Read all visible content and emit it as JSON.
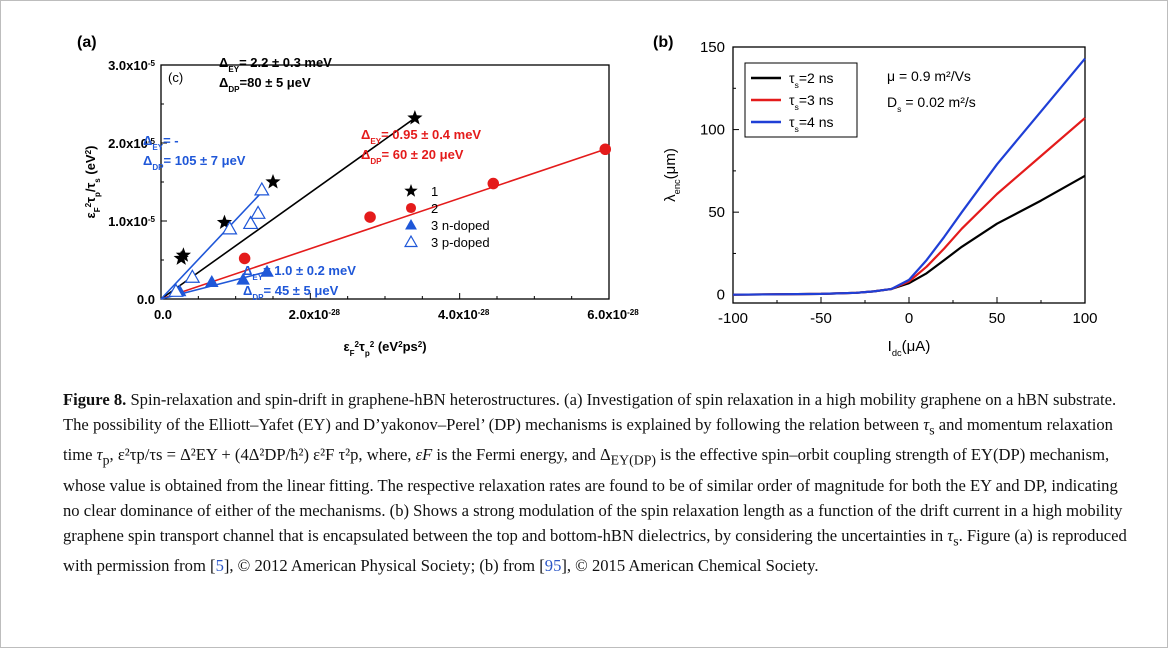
{
  "chart_data": [
    {
      "type": "scatter",
      "panel_label": "(a)",
      "inset_label": "(c)",
      "xlabel_parts": [
        "ε",
        "F",
        "2",
        "τ",
        "p",
        "2",
        " (eV",
        "2",
        "ps",
        "2",
        ")"
      ],
      "ylabel_parts": [
        "ε",
        "F",
        "2",
        "τ",
        "p",
        "/τ",
        "s",
        " (eV",
        "2",
        ")"
      ],
      "xlim": [
        0,
        6e-28
      ],
      "ylim": [
        0,
        3e-05
      ],
      "x_ticks": [
        {
          "mant": "0.0",
          "exp": ""
        },
        {
          "mant": "2.0x10",
          "exp": "-28"
        },
        {
          "mant": "4.0x10",
          "exp": "-28"
        },
        {
          "mant": "6.0x10",
          "exp": "-28"
        }
      ],
      "x_tick_values": [
        0,
        2e-28,
        4e-28,
        6e-28
      ],
      "y_ticks": [
        {
          "mant": "0.0",
          "exp": ""
        },
        {
          "mant": "1.0x10",
          "exp": "-5"
        },
        {
          "mant": "2.0x10",
          "exp": "-5"
        },
        {
          "mant": "3.0x10",
          "exp": "-5"
        }
      ],
      "y_tick_values": [
        0,
        1e-05,
        2e-05,
        3e-05
      ],
      "series": [
        {
          "name": "1",
          "marker": "star",
          "color": "#000000",
          "x": [
            2.7e-29,
            3e-29,
            8.5e-29,
            1.5e-28,
            3.4e-28
          ],
          "y": [
            5.2e-06,
            5.6e-06,
            9.8e-06,
            1.5e-05,
            2.32e-05
          ],
          "fit": [
            [
              0,
              0
            ],
            [
              3.4e-28,
              2.32e-05
            ]
          ]
        },
        {
          "name": "2",
          "marker": "circle",
          "color": "#e41b1b",
          "x": [
            1.12e-28,
            2.8e-28,
            4.45e-28,
            5.95e-28
          ],
          "y": [
            5.2e-06,
            1.05e-05,
            1.48e-05,
            1.92e-05
          ],
          "fit": [
            [
              0,
              0
            ],
            [
              5.95e-28,
              1.92e-05
            ]
          ]
        },
        {
          "name": "3 n-doped",
          "marker": "triangle",
          "color": "#1f57d8",
          "x": [
            2.5e-29,
            6.8e-29,
            1.1e-28,
            1.42e-28
          ],
          "y": [
            1e-06,
            2.2e-06,
            2.5e-06,
            3.5e-06
          ],
          "fit": [
            [
              0,
              0
            ],
            [
              1.42e-28,
              3.5e-06
            ]
          ]
        },
        {
          "name": "3 p-doped",
          "marker": "triangle-open",
          "color": "#1f57d8",
          "x": [
            2e-29,
            4.2e-29,
            9.2e-29,
            1.2e-28,
            1.3e-28,
            1.35e-28
          ],
          "y": [
            1e-06,
            2.8e-06,
            9e-06,
            9.7e-06,
            1.1e-05,
            1.4e-05
          ],
          "fit": [
            [
              0,
              0
            ],
            [
              1.38e-28,
              1.4e-05
            ]
          ]
        }
      ],
      "annotations": [
        {
          "color": "#000000",
          "lines": [
            [
              [
                "Δ",
                ""
              ],
              [
                "EY",
                "sub"
              ],
              [
                "= 2.2 ± 0.3 meV",
                ""
              ]
            ],
            [
              [
                "Δ",
                ""
              ],
              [
                "DP",
                "sub"
              ],
              [
                "=80 ± 5 μeV",
                ""
              ]
            ]
          ]
        },
        {
          "color": "#1f57d8",
          "lines": [
            [
              [
                "Δ",
                ""
              ],
              [
                "EY",
                "sub"
              ],
              [
                "= -",
                ""
              ]
            ],
            [
              [
                "Δ",
                ""
              ],
              [
                "DP",
                "sub"
              ],
              [
                "= 105 ± 7 μeV",
                ""
              ]
            ]
          ]
        },
        {
          "color": "#e41b1b",
          "lines": [
            [
              [
                "Δ",
                ""
              ],
              [
                "EY",
                "sub"
              ],
              [
                "= 0.95 ± 0.4 meV",
                ""
              ]
            ],
            [
              [
                "Δ",
                ""
              ],
              [
                "DP",
                "sub"
              ],
              [
                "= 60 ± 20 μeV",
                ""
              ]
            ]
          ]
        },
        {
          "color": "#1f57d8",
          "lines": [
            [
              [
                "Δ",
                ""
              ],
              [
                "EY",
                "sub"
              ],
              [
                "= 1.0 ± 0.2 meV",
                ""
              ]
            ],
            [
              [
                "Δ",
                ""
              ],
              [
                "DP",
                "sub"
              ],
              [
                "= 45 ± 5 μeV",
                ""
              ]
            ]
          ]
        }
      ]
    },
    {
      "type": "line",
      "panel_label": "(b)",
      "xlabel_parts": [
        "I",
        "dc",
        "(μA)"
      ],
      "ylabel_parts": [
        "λ",
        "enc",
        "(μm)"
      ],
      "xlim": [
        -100,
        100
      ],
      "ylim": [
        -5,
        150
      ],
      "x_ticks": [
        "-100",
        "-50",
        "0",
        "50",
        "100"
      ],
      "x_tick_values": [
        -100,
        -50,
        0,
        50,
        100
      ],
      "y_ticks": [
        "0",
        "50",
        "100",
        "150"
      ],
      "y_tick_values": [
        0,
        50,
        100,
        150
      ],
      "legend_position": "top-left",
      "params": [
        "μ = 0.9 m²/Vs",
        "D",
        "s",
        " = 0.02 m²/s"
      ],
      "series": [
        {
          "name_parts": [
            "τ",
            "s",
            "=2 ns"
          ],
          "color": "#000000",
          "x": [
            -100,
            -50,
            -30,
            -20,
            -10,
            0,
            10,
            20,
            30,
            50,
            75,
            100
          ],
          "y": [
            0,
            0.5,
            1.2,
            2,
            3.5,
            7,
            13,
            21,
            29,
            43,
            57,
            72
          ]
        },
        {
          "name_parts": [
            "τ",
            "s",
            "=3 ns"
          ],
          "color": "#e41b1b",
          "x": [
            -100,
            -50,
            -30,
            -20,
            -10,
            0,
            10,
            20,
            30,
            50,
            75,
            100
          ],
          "y": [
            0,
            0.5,
            1.2,
            2,
            3.5,
            8,
            17,
            28,
            40,
            61,
            84,
            107
          ]
        },
        {
          "name_parts": [
            "τ",
            "s",
            "=4 ns"
          ],
          "color": "#1f3fd6",
          "x": [
            -100,
            -50,
            -30,
            -20,
            -10,
            0,
            10,
            20,
            30,
            50,
            75,
            100
          ],
          "y": [
            0,
            0.5,
            1.2,
            2,
            3.5,
            9,
            21,
            35,
            50,
            79,
            111,
            143
          ]
        }
      ]
    }
  ],
  "caption": {
    "fig_label": "Figure 8.",
    "text_1": "  Spin-relaxation and spin-drift in graphene-hBN heterostructures. (a) Investigation of spin relaxation in a high mobility graphene on a hBN substrate. The possibility of the Elliott–Yafet (EY) and D’yakonov–Perel’ (DP) mechanisms is explained by following the relation between ",
    "tau_s": "τ",
    "s_sub": "s",
    "text_2": " and momentum relaxation time ",
    "tau_p": "τ",
    "p_sub": "p",
    "formula": ", ε²τp/τs = Δ²EY + (4Δ²DP/ħ²) ε²F τ²p,",
    "text_3": " where, ",
    "eps_f": "εF",
    "text_4": " is the Fermi energy, and ",
    "delta": "Δ",
    "ey_dp": "EY(DP)",
    "text_5": " is the effective spin–orbit coupling strength of EY(DP) mechanism, whose value is obtained from the linear fitting. The respective relaxation rates are found to be of similar order of magnitude for both the EY and DP, indicating no clear dominance of either of the mechanisms. (b) Shows a strong modulation of the spin relaxation length as a function of the drift current in a high mobility graphene spin transport channel that is encapsulated between the top and bottom-hBN dielectrics, by considering the uncertainties in ",
    "tau_s2": "τ",
    "s_sub2": "s",
    "text_6": ". Figure (a) is reproduced with permission from [",
    "ref1": "5",
    "text_7": "], © 2012 American Physical Society; (b) from [",
    "ref2": "95",
    "text_8": "], © 2015 American Chemical Society."
  }
}
